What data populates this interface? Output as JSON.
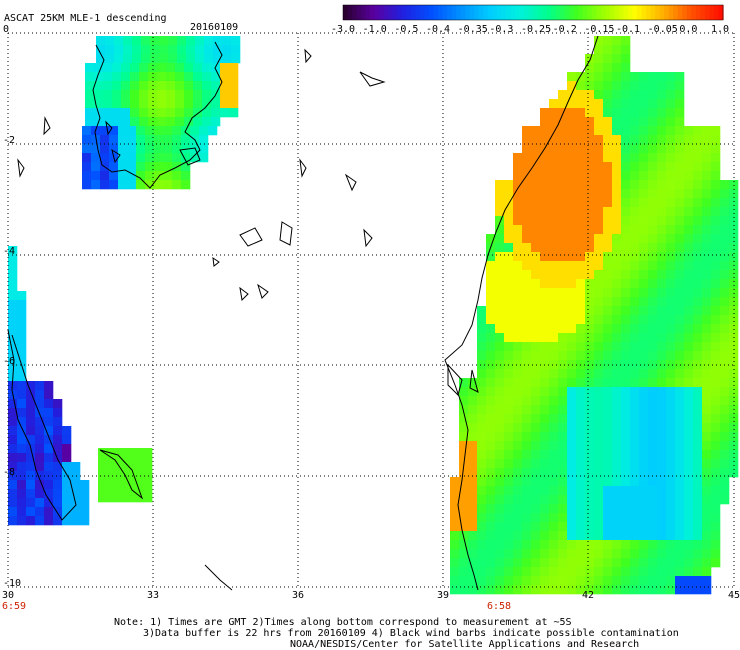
{
  "title": "ASCAT 25KM MLE-1 descending",
  "date": "20160109",
  "colorbar": {
    "labels": [
      "-3.0",
      "-1.0",
      "-0.5",
      "-0.4",
      "-0.35",
      "-0.3",
      "-0.25",
      "-0.2",
      "-0.15",
      "-0.1",
      "-0.05",
      "0.0",
      "1.0"
    ],
    "colors": [
      "#2a0030",
      "#5a00a0",
      "#2020e0",
      "#0050ff",
      "#0090ff",
      "#00ccff",
      "#00f0e0",
      "#00ff90",
      "#40ff20",
      "#a0ff00",
      "#ffff00",
      "#ffb000",
      "#ff5000",
      "#ff1000"
    ]
  },
  "lon_labels": [
    "30",
    "33",
    "36",
    "39",
    "42",
    "45"
  ],
  "lat_labels": [
    "0",
    "-2",
    "-4",
    "-6",
    "-8",
    "-10"
  ],
  "time_labels": [
    "6:59",
    "6:58"
  ],
  "notes": [
    "Note: 1) Times are GMT 2)Times along bottom correspond to measurement at ~5S",
    "3)Data buffer is 22 hrs from 20160109 4) Black wind barbs indicate possible contamination",
    "NOAA/NESDIS/Center for Satellite Applications and Research"
  ]
}
